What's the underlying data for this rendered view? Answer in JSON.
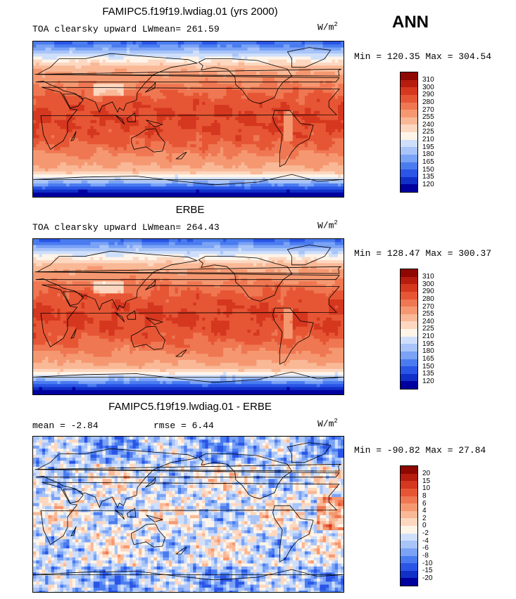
{
  "season": "ANN",
  "colors": {
    "abs_scale": [
      "#00009f",
      "#1030c8",
      "#2a55e6",
      "#4a7cf0",
      "#7aa2f5",
      "#a8c4f8",
      "#cfdffb",
      "#fff4e8",
      "#fdd7c0",
      "#f9b896",
      "#f59871",
      "#ef7752",
      "#e65635",
      "#d5371f",
      "#b61d0f",
      "#8e0700"
    ],
    "diff_scale": [
      "#00009f",
      "#1030c8",
      "#2a55e6",
      "#4a7cf0",
      "#7aa2f5",
      "#a8c4f8",
      "#cfdffb",
      "#fff4e8",
      "#fdd7c0",
      "#f9b896",
      "#f59871",
      "#ef7752",
      "#e65635",
      "#d5371f",
      "#b61d0f",
      "#8e0700"
    ]
  },
  "panels": [
    {
      "title": "FAMIPC5.f19f19.lwdiag.01 (yrs 2000)",
      "left_label": "TOA clearsky upward LW",
      "mean_label": "mean= 261.59",
      "units_base": "W/m",
      "units_exp": "2",
      "minmax": "Min = 120.35 Max = 304.54",
      "ticks": [
        "310",
        "300",
        "290",
        "280",
        "270",
        "255",
        "240",
        "225",
        "210",
        "195",
        "180",
        "165",
        "150",
        "135",
        "120"
      ],
      "field": "model"
    },
    {
      "title": "ERBE",
      "left_label": "TOA clearsky upward LW",
      "mean_label": "mean= 264.43",
      "units_base": "W/m",
      "units_exp": "2",
      "minmax": "Min = 128.47 Max = 300.37",
      "ticks": [
        "310",
        "300",
        "290",
        "280",
        "270",
        "255",
        "240",
        "225",
        "210",
        "195",
        "180",
        "165",
        "150",
        "135",
        "120"
      ],
      "field": "obs"
    },
    {
      "title": "FAMIPC5.f19f19.lwdiag.01 - ERBE",
      "left_label": "mean =   -2.84",
      "mean_label": "rmse =    6.44",
      "units_base": "W/m",
      "units_exp": "2",
      "minmax": "Min = -90.82 Max =  27.84",
      "ticks": [
        "20",
        "15",
        "10",
        "8",
        "6",
        "4",
        "2",
        "0",
        "-2",
        "-4",
        "-6",
        "-8",
        "-10",
        "-15",
        "-20"
      ],
      "field": "diff"
    }
  ]
}
